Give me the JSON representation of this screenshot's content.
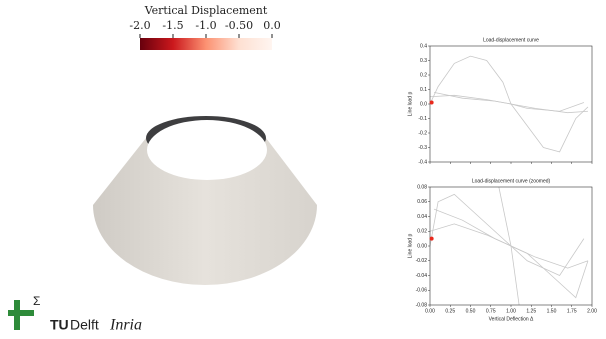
{
  "colorbar": {
    "title": "Vertical Displacement",
    "range": [
      -2,
      0
    ],
    "colors": [
      "#67000d",
      "#cb181d",
      "#fc9272",
      "#fee0d2",
      "#fff5f0"
    ],
    "ticks": [
      {
        "value": -2,
        "label": "-2.0"
      },
      {
        "value": -1.5,
        "label": "-1.5"
      },
      {
        "value": -1,
        "label": "-1.0"
      },
      {
        "value": -0.5,
        "label": "-0.50"
      },
      {
        "value": 0,
        "label": "0.0"
      }
    ]
  },
  "chart_data": [
    {
      "type": "line",
      "title": "Load-displacement curve",
      "y_label": "Line load p",
      "xlim": [
        0,
        2
      ],
      "ylim": [
        -0.4,
        0.4
      ],
      "xticks": [
        0,
        0.25,
        0.5,
        0.75,
        1,
        1.25,
        1.5,
        1.75,
        2
      ],
      "yticks": [
        0.4,
        0.3,
        0.2,
        0.1,
        {
          "value": 0,
          "label": "0.0"
        },
        -0.1,
        -0.2,
        -0.3,
        -0.4
      ],
      "series": [
        {
          "color": "#c8c8c8",
          "x": [
            0,
            0.1,
            0.3,
            0.5,
            0.7,
            0.9,
            1.0,
            1.2,
            1.4,
            1.6,
            1.8,
            1.95
          ],
          "values": [
            0,
            0.12,
            0.28,
            0.33,
            0.3,
            0.15,
            0,
            -0.15,
            -0.3,
            -0.33,
            -0.1,
            -0.02
          ]
        },
        {
          "color": "#c8c8c8",
          "x": [
            0,
            0.3,
            0.7,
            1.0,
            1.3,
            1.7,
            1.95
          ],
          "values": [
            0.05,
            0.06,
            0.03,
            0,
            -0.03,
            -0.06,
            -0.05
          ]
        },
        {
          "color": "#c8c8c8",
          "x": [
            0.05,
            0.4,
            0.8,
            1.0,
            1.2,
            1.6,
            1.9
          ],
          "values": [
            0.08,
            0.04,
            0.02,
            0,
            -0.03,
            -0.05,
            0.01
          ]
        }
      ],
      "marker": {
        "x": 0.02,
        "y": 0.01,
        "color": "#e8291c"
      }
    },
    {
      "type": "line",
      "title": "Load-displacement curve (zoomed)",
      "y_label": "Line load p",
      "x_label": "Vertical Deflection Δ",
      "xlim": [
        0,
        2
      ],
      "ylim": [
        -0.08,
        0.08
      ],
      "xticks": [
        {
          "value": 0,
          "label": "0.00"
        },
        0.25,
        {
          "value": 0.5,
          "label": "0.50"
        },
        0.75,
        {
          "value": 1,
          "label": "1.00"
        },
        1.25,
        {
          "value": 1.5,
          "label": "1.50"
        },
        1.75,
        {
          "value": 2,
          "label": "2.00"
        }
      ],
      "yticks": [
        0.08,
        0.06,
        0.04,
        0.02,
        {
          "value": 0,
          "label": "0.00"
        },
        -0.02,
        -0.04,
        -0.06,
        -0.08
      ],
      "series": [
        {
          "color": "#c8c8c8",
          "x": [
            0,
            0.1,
            0.3,
            0.5,
            0.7,
            0.9,
            1.0,
            1.2,
            1.4,
            1.6,
            1.8,
            1.95
          ],
          "values": [
            0,
            0.06,
            0.07,
            0.05,
            0.03,
            0.01,
            0,
            -0.01,
            -0.03,
            -0.05,
            -0.07,
            -0.02
          ]
        },
        {
          "color": "#c8c8c8",
          "x": [
            0,
            0.3,
            0.7,
            1.0,
            1.3,
            1.7,
            1.95
          ],
          "values": [
            0.02,
            0.03,
            0.015,
            0,
            -0.015,
            -0.03,
            -0.02
          ]
        },
        {
          "color": "#c8c8c8",
          "x": [
            0.05,
            0.4,
            0.8,
            1.0,
            1.2,
            1.6,
            1.9
          ],
          "values": [
            0.05,
            0.035,
            0.01,
            0,
            -0.02,
            -0.04,
            0.01
          ]
        },
        {
          "color": "#c8c8c8",
          "x": [
            0.85,
            1.0,
            1.1
          ],
          "values": [
            0.08,
            0,
            -0.08
          ]
        }
      ],
      "marker": {
        "x": 0.02,
        "y": 0.01,
        "color": "#e8291c"
      }
    }
  ],
  "logos": {
    "tu": "TU",
    "delft": "Delft",
    "inria": "Inria"
  }
}
